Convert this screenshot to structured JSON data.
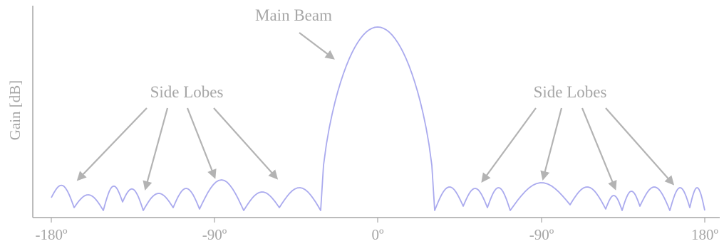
{
  "diagram": {
    "y_axis_label": "Gain [dB]",
    "x_ticks": [
      "-180º",
      "-90º",
      "0º",
      "-90º",
      "180º"
    ],
    "annotations": {
      "main_beam": "Main Beam",
      "side_lobes_left": "Side Lobes",
      "side_lobes_right": "Side Lobes"
    },
    "colors": {
      "curve": "#aaaaee",
      "axis": "#a6a6a6",
      "arrow": "#b3b3b3",
      "text": "#a6a6a6"
    }
  }
}
